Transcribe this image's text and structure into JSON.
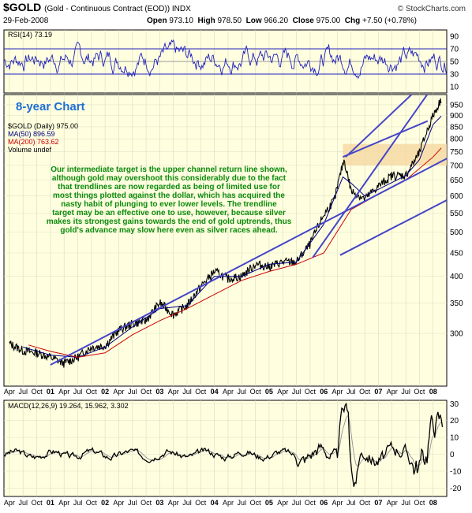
{
  "header": {
    "symbol": "$GOLD",
    "description": "(Gold - Continuous Contract (EOD)) INDX",
    "date": "29-Feb-2008",
    "open_label": "Open",
    "open": "973.10",
    "high_label": "High",
    "high": "978.50",
    "low_label": "Low",
    "low": "966.20",
    "close_label": "Close",
    "close": "975.00",
    "chg_label": "Chg",
    "chg": "+7.50 (+0.78%)",
    "brand": "© StockCharts.com"
  },
  "colors": {
    "panel_bg": "#ffffe0",
    "price_line": "#000000",
    "ma50": "#00007f",
    "ma200": "#cc0000",
    "trendline": "#4545c8",
    "rsi": "#2222bb",
    "annotation_text": "#0b8a0b",
    "target_band": "#f5d8a0",
    "headline_text": "#1f6ed4"
  },
  "chart_data": [
    {
      "type": "line",
      "panel": "rsi",
      "legend": "RSI(14) 73.19",
      "ylim": [
        0,
        100
      ],
      "yticks": [
        10,
        30,
        50,
        70,
        90
      ],
      "reference_lines": [
        30,
        50,
        70
      ],
      "last_value": 73.19
    },
    {
      "type": "line",
      "panel": "price",
      "headline": "8-year Chart",
      "log_scale": true,
      "ylim": [
        230,
        1000
      ],
      "yticks": [
        300,
        350,
        400,
        450,
        500,
        550,
        600,
        650,
        700,
        750,
        800,
        850,
        900,
        950
      ],
      "legend": [
        {
          "label": "$GOLD (Daily) 975.00",
          "color": "#000000"
        },
        {
          "label": "MA(50) 896.59",
          "color": "#00007f"
        },
        {
          "label": "MA(200) 763.62",
          "color": "#cc0000"
        },
        {
          "label": "Volume undef",
          "color": "#000000"
        }
      ],
      "series": [
        {
          "name": "$GOLD (Daily)",
          "color": "#000000",
          "x": [
            2000.25,
            2000.5,
            2000.75,
            2001.0,
            2001.25,
            2001.5,
            2001.75,
            2002.0,
            2002.25,
            2002.5,
            2002.75,
            2003.0,
            2003.25,
            2003.5,
            2003.75,
            2004.0,
            2004.25,
            2004.5,
            2004.75,
            2005.0,
            2005.25,
            2005.5,
            2005.75,
            2006.0,
            2006.2,
            2006.37,
            2006.5,
            2006.75,
            2007.0,
            2007.25,
            2007.5,
            2007.75,
            2008.0,
            2008.15
          ],
          "y": [
            285,
            275,
            272,
            266,
            258,
            266,
            280,
            282,
            305,
            315,
            320,
            350,
            330,
            345,
            380,
            410,
            395,
            400,
            425,
            420,
            430,
            430,
            470,
            545,
            590,
            720,
            615,
            590,
            630,
            665,
            665,
            745,
            900,
            975
          ]
        },
        {
          "name": "MA(50)",
          "color": "#00007f",
          "x": [
            2000.5,
            2001.0,
            2001.5,
            2002.0,
            2002.5,
            2003.0,
            2003.5,
            2004.0,
            2004.5,
            2005.0,
            2005.5,
            2006.0,
            2006.35,
            2006.5,
            2006.75,
            2007.0,
            2007.5,
            2007.75,
            2008.0,
            2008.15
          ],
          "y": [
            280,
            269,
            266,
            280,
            310,
            340,
            345,
            400,
            400,
            425,
            430,
            520,
            660,
            640,
            600,
            620,
            665,
            720,
            860,
            897
          ]
        },
        {
          "name": "MA(200)",
          "color": "#cc0000",
          "x": [
            2000.6,
            2001.0,
            2001.5,
            2002.0,
            2002.5,
            2003.0,
            2003.5,
            2004.0,
            2004.5,
            2005.0,
            2005.5,
            2006.0,
            2006.5,
            2007.0,
            2007.5,
            2008.0,
            2008.15
          ],
          "y": [
            283,
            274,
            266,
            272,
            298,
            320,
            340,
            365,
            392,
            410,
            425,
            450,
            560,
            605,
            650,
            730,
            764
          ]
        }
      ],
      "trendlines": [
        {
          "name": "lower-trendline",
          "x": [
            2001.0,
            2008.4
          ],
          "y": [
            256,
            740
          ]
        },
        {
          "name": "middle-trendline",
          "x": [
            2005.8,
            2008.4
          ],
          "y": [
            440,
            1220
          ]
        },
        {
          "name": "lower-channel-line",
          "x": [
            2006.3,
            2008.4
          ],
          "y": [
            445,
            600
          ]
        },
        {
          "name": "upper-channel-line",
          "x": [
            2006.4,
            2008.4
          ],
          "y": [
            730,
            1230
          ]
        },
        {
          "name": "upper-return-line",
          "x": [
            2006.35,
            2007.9
          ],
          "y": [
            730,
            875
          ]
        }
      ],
      "target_band": {
        "x": [
          2006.35,
          2008.25
        ],
        "y": [
          700,
          780
        ]
      },
      "annotation": "Our intermediate target is the upper channel return line shown, although gold may overshoot this considerably due to the fact that trendlines are now regarded as being of limited use for most things plotted against the dollar, which has acquired the nasty habit of plunging to ever lower levels. The trendline target may be an effective one to use, however, because silver makes its strongest gains towards the end of gold uptrends, thus gold's advance may slow here even as silver races ahead."
    },
    {
      "type": "line",
      "panel": "macd",
      "legend": "MACD(12,26,9) 19.264, 15.962, 3.302",
      "ylim": [
        -25,
        32
      ],
      "yticks": [
        -20,
        -10,
        0,
        10,
        20,
        30
      ],
      "last_values": {
        "macd": 19.264,
        "signal": 15.962,
        "histogram": 3.302
      }
    }
  ],
  "x_axis": {
    "xlim": [
      2000.15,
      2008.25
    ],
    "labels": [
      {
        "t": "Apr",
        "x": 2000.25
      },
      {
        "t": "Jul",
        "x": 2000.5
      },
      {
        "t": "Oct",
        "x": 2000.75
      },
      {
        "t": "01",
        "x": 2001.0,
        "bold": true
      },
      {
        "t": "Apr",
        "x": 2001.25
      },
      {
        "t": "Jul",
        "x": 2001.5
      },
      {
        "t": "Oct",
        "x": 2001.75
      },
      {
        "t": "02",
        "x": 2002.0,
        "bold": true
      },
      {
        "t": "Apr",
        "x": 2002.25
      },
      {
        "t": "Jul",
        "x": 2002.5
      },
      {
        "t": "Oct",
        "x": 2002.75
      },
      {
        "t": "03",
        "x": 2003.0,
        "bold": true
      },
      {
        "t": "Apr",
        "x": 2003.25
      },
      {
        "t": "Jul",
        "x": 2003.5
      },
      {
        "t": "Oct",
        "x": 2003.75
      },
      {
        "t": "04",
        "x": 2004.0,
        "bold": true
      },
      {
        "t": "Apr",
        "x": 2004.25
      },
      {
        "t": "Jul",
        "x": 2004.5
      },
      {
        "t": "Oct",
        "x": 2004.75
      },
      {
        "t": "05",
        "x": 2005.0,
        "bold": true
      },
      {
        "t": "Apr",
        "x": 2005.25
      },
      {
        "t": "Jul",
        "x": 2005.5
      },
      {
        "t": "Oct",
        "x": 2005.75
      },
      {
        "t": "06",
        "x": 2006.0,
        "bold": true
      },
      {
        "t": "Apr",
        "x": 2006.25
      },
      {
        "t": "Jul",
        "x": 2006.5
      },
      {
        "t": "Oct",
        "x": 2006.75
      },
      {
        "t": "07",
        "x": 2007.0,
        "bold": true
      },
      {
        "t": "Apr",
        "x": 2007.25
      },
      {
        "t": "Jul",
        "x": 2007.5
      },
      {
        "t": "Oct",
        "x": 2007.75
      },
      {
        "t": "08",
        "x": 2008.0,
        "bold": true
      }
    ]
  }
}
